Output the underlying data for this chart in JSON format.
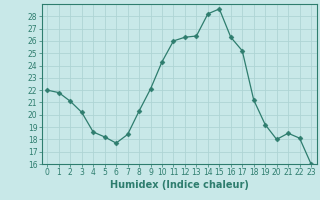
{
  "x": [
    0,
    1,
    2,
    3,
    4,
    5,
    6,
    7,
    8,
    9,
    10,
    11,
    12,
    13,
    14,
    15,
    16,
    17,
    18,
    19,
    20,
    21,
    22,
    23
  ],
  "y": [
    22,
    21.8,
    21.1,
    20.2,
    18.6,
    18.2,
    17.7,
    18.4,
    20.3,
    22.1,
    24.3,
    26.0,
    26.3,
    26.4,
    28.2,
    28.6,
    26.3,
    25.2,
    21.2,
    19.2,
    18.0,
    18.5,
    18.1,
    16.0
  ],
  "line_color": "#2e7d6e",
  "marker": "D",
  "marker_size": 2.5,
  "bg_color": "#c8e8e8",
  "grid_color": "#aed4d4",
  "xlabel": "Humidex (Indice chaleur)",
  "xlim": [
    -0.5,
    23.5
  ],
  "ylim": [
    16,
    29
  ],
  "yticks": [
    16,
    17,
    18,
    19,
    20,
    21,
    22,
    23,
    24,
    25,
    26,
    27,
    28
  ],
  "xticks": [
    0,
    1,
    2,
    3,
    4,
    5,
    6,
    7,
    8,
    9,
    10,
    11,
    12,
    13,
    14,
    15,
    16,
    17,
    18,
    19,
    20,
    21,
    22,
    23
  ],
  "tick_label_fontsize": 5.5,
  "xlabel_fontsize": 7,
  "spine_color": "#2e7d6e"
}
